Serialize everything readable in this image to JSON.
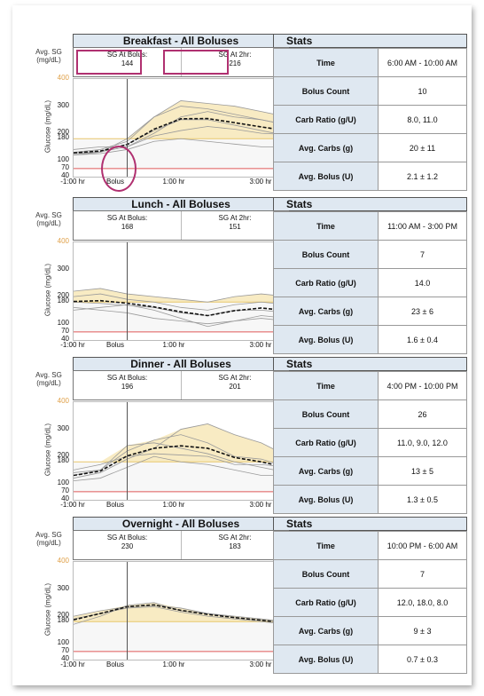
{
  "colors": {
    "target_band": "#fdf1c8",
    "high_fill": "#f0d27a",
    "low_fill": "#f4c6c6",
    "low_line": "#e05a5a",
    "median_line": "#111111",
    "highlight": "#b03070",
    "avg_sg_value_color": "#e0a14a"
  },
  "common": {
    "avg_sg_label": "Avg. SG (mg/dL)",
    "y_axis_title": "Glucose (mg/dL)",
    "y_ticks": [
      "400",
      "300",
      "200",
      "180",
      "100",
      "70",
      "40"
    ],
    "x_ticks": [
      "-1:00 hr",
      "Bolus",
      "1:00 hr",
      "3:00 hr"
    ],
    "stats_header": "Stats",
    "stat_labels": [
      "Time",
      "Bolus Count",
      "Carb Ratio (g/U)",
      "Avg. Carbs (g)",
      "Avg. Bolus (U)"
    ]
  },
  "panels": [
    {
      "title": "Breakfast - All Boluses",
      "sg_at_bolus_label": "SG At Bolus:",
      "sg_at_bolus": "144",
      "sg_at_2hr_label": "SG At 2hr:",
      "sg_at_2hr": "216",
      "stats": {
        "time": "6:00 AM - 10:00 AM",
        "bolus_count": "10",
        "carb_ratio": "8.0, 11.0",
        "avg_carbs": "20 ± 11",
        "avg_bolus": "2.1 ± 1.2"
      }
    },
    {
      "title": "Lunch - All Boluses",
      "sg_at_bolus_label": "SG At Bolus:",
      "sg_at_bolus": "168",
      "sg_at_2hr_label": "SG At 2hr:",
      "sg_at_2hr": "151",
      "stats": {
        "time": "11:00 AM - 3:00 PM",
        "bolus_count": "7",
        "carb_ratio": "14.0",
        "avg_carbs": "23 ± 6",
        "avg_bolus": "1.6 ± 0.4"
      }
    },
    {
      "title": "Dinner - All Boluses",
      "sg_at_bolus_label": "SG At Bolus:",
      "sg_at_bolus": "196",
      "sg_at_2hr_label": "SG At 2hr:",
      "sg_at_2hr": "201",
      "stats": {
        "time": "4:00 PM - 10:00 PM",
        "bolus_count": "26",
        "carb_ratio": "11.0, 9.0, 12.0",
        "avg_carbs": "13 ± 5",
        "avg_bolus": "1.3 ± 0.5"
      }
    },
    {
      "title": "Overnight - All Boluses",
      "sg_at_bolus_label": "SG At Bolus:",
      "sg_at_bolus": "230",
      "sg_at_2hr_label": "SG At 2hr:",
      "sg_at_2hr": "183",
      "stats": {
        "time": "10:00 PM - 6:00 AM",
        "bolus_count": "7",
        "carb_ratio": "12.0, 18.0, 8.0",
        "avg_carbs": "9 ± 3",
        "avg_bolus": "0.7 ± 0.3"
      }
    }
  ],
  "chart_data": [
    {
      "type": "line",
      "title": "Breakfast - All Boluses",
      "xlabel": "",
      "ylabel": "Glucose (mg/dL)",
      "ylim": [
        40,
        400
      ],
      "xlim": [
        -1,
        3
      ],
      "x": [
        -1,
        -0.5,
        0,
        0.5,
        1,
        1.5,
        2,
        2.5,
        3
      ],
      "series": [
        {
          "values": [
            130,
            132,
            150,
            190,
            210,
            225,
            215,
            200,
            195
          ]
        },
        {
          "values": [
            120,
            130,
            160,
            210,
            250,
            250,
            230,
            210,
            190
          ]
        },
        {
          "values": [
            140,
            150,
            150,
            200,
            260,
            280,
            260,
            250,
            230
          ]
        },
        {
          "values": [
            130,
            140,
            170,
            260,
            320,
            310,
            300,
            280,
            260
          ]
        },
        {
          "values": [
            120,
            125,
            140,
            170,
            180,
            170,
            160,
            150,
            150
          ]
        },
        {
          "values": [
            125,
            130,
            180,
            260,
            300,
            290,
            270,
            250,
            230
          ]
        }
      ]
    },
    {
      "type": "line",
      "title": "Lunch - All Boluses",
      "xlabel": "",
      "ylabel": "Glucose (mg/dL)",
      "ylim": [
        40,
        400
      ],
      "xlim": [
        -1,
        3
      ],
      "x": [
        -1,
        -0.5,
        0,
        0.5,
        1,
        1.5,
        2,
        2.5,
        3
      ],
      "series": [
        {
          "values": [
            180,
            175,
            168,
            160,
            140,
            130,
            150,
            150,
            140
          ]
        },
        {
          "values": [
            200,
            210,
            190,
            180,
            160,
            150,
            170,
            180,
            170
          ]
        },
        {
          "values": [
            160,
            150,
            140,
            120,
            110,
            100,
            110,
            130,
            120
          ]
        },
        {
          "values": [
            220,
            230,
            210,
            200,
            190,
            180,
            200,
            210,
            200
          ]
        },
        {
          "values": [
            150,
            160,
            170,
            150,
            120,
            90,
            110,
            120,
            110
          ]
        }
      ]
    },
    {
      "type": "line",
      "title": "Dinner - All Boluses",
      "xlabel": "",
      "ylabel": "Glucose (mg/dL)",
      "ylim": [
        40,
        400
      ],
      "xlim": [
        -1,
        3
      ],
      "x": [
        -1,
        -0.5,
        0,
        0.5,
        1,
        1.5,
        2,
        2.5,
        3
      ],
      "series": [
        {
          "values": [
            150,
            170,
            200,
            210,
            205,
            200,
            170,
            170,
            160
          ]
        },
        {
          "values": [
            130,
            150,
            220,
            260,
            280,
            250,
            200,
            190,
            160
          ]
        },
        {
          "values": [
            120,
            140,
            190,
            230,
            300,
            320,
            280,
            250,
            200
          ]
        },
        {
          "values": [
            110,
            120,
            160,
            200,
            180,
            170,
            150,
            130,
            130
          ]
        },
        {
          "values": [
            140,
            150,
            240,
            250,
            230,
            210,
            180,
            160,
            140
          ]
        }
      ]
    },
    {
      "type": "line",
      "title": "Overnight - All Boluses",
      "xlabel": "",
      "ylabel": "Glucose (mg/dL)",
      "ylim": [
        40,
        400
      ],
      "xlim": [
        -1,
        3
      ],
      "x": [
        -1,
        -0.5,
        0,
        0.5,
        1,
        1.5,
        2,
        2.5,
        3
      ],
      "series": [
        {
          "values": [
            190,
            210,
            230,
            235,
            215,
            200,
            190,
            180,
            170
          ]
        },
        {
          "values": [
            170,
            200,
            240,
            250,
            220,
            210,
            200,
            190,
            180
          ]
        },
        {
          "values": [
            200,
            220,
            235,
            240,
            230,
            210,
            195,
            185,
            175
          ]
        }
      ]
    }
  ]
}
